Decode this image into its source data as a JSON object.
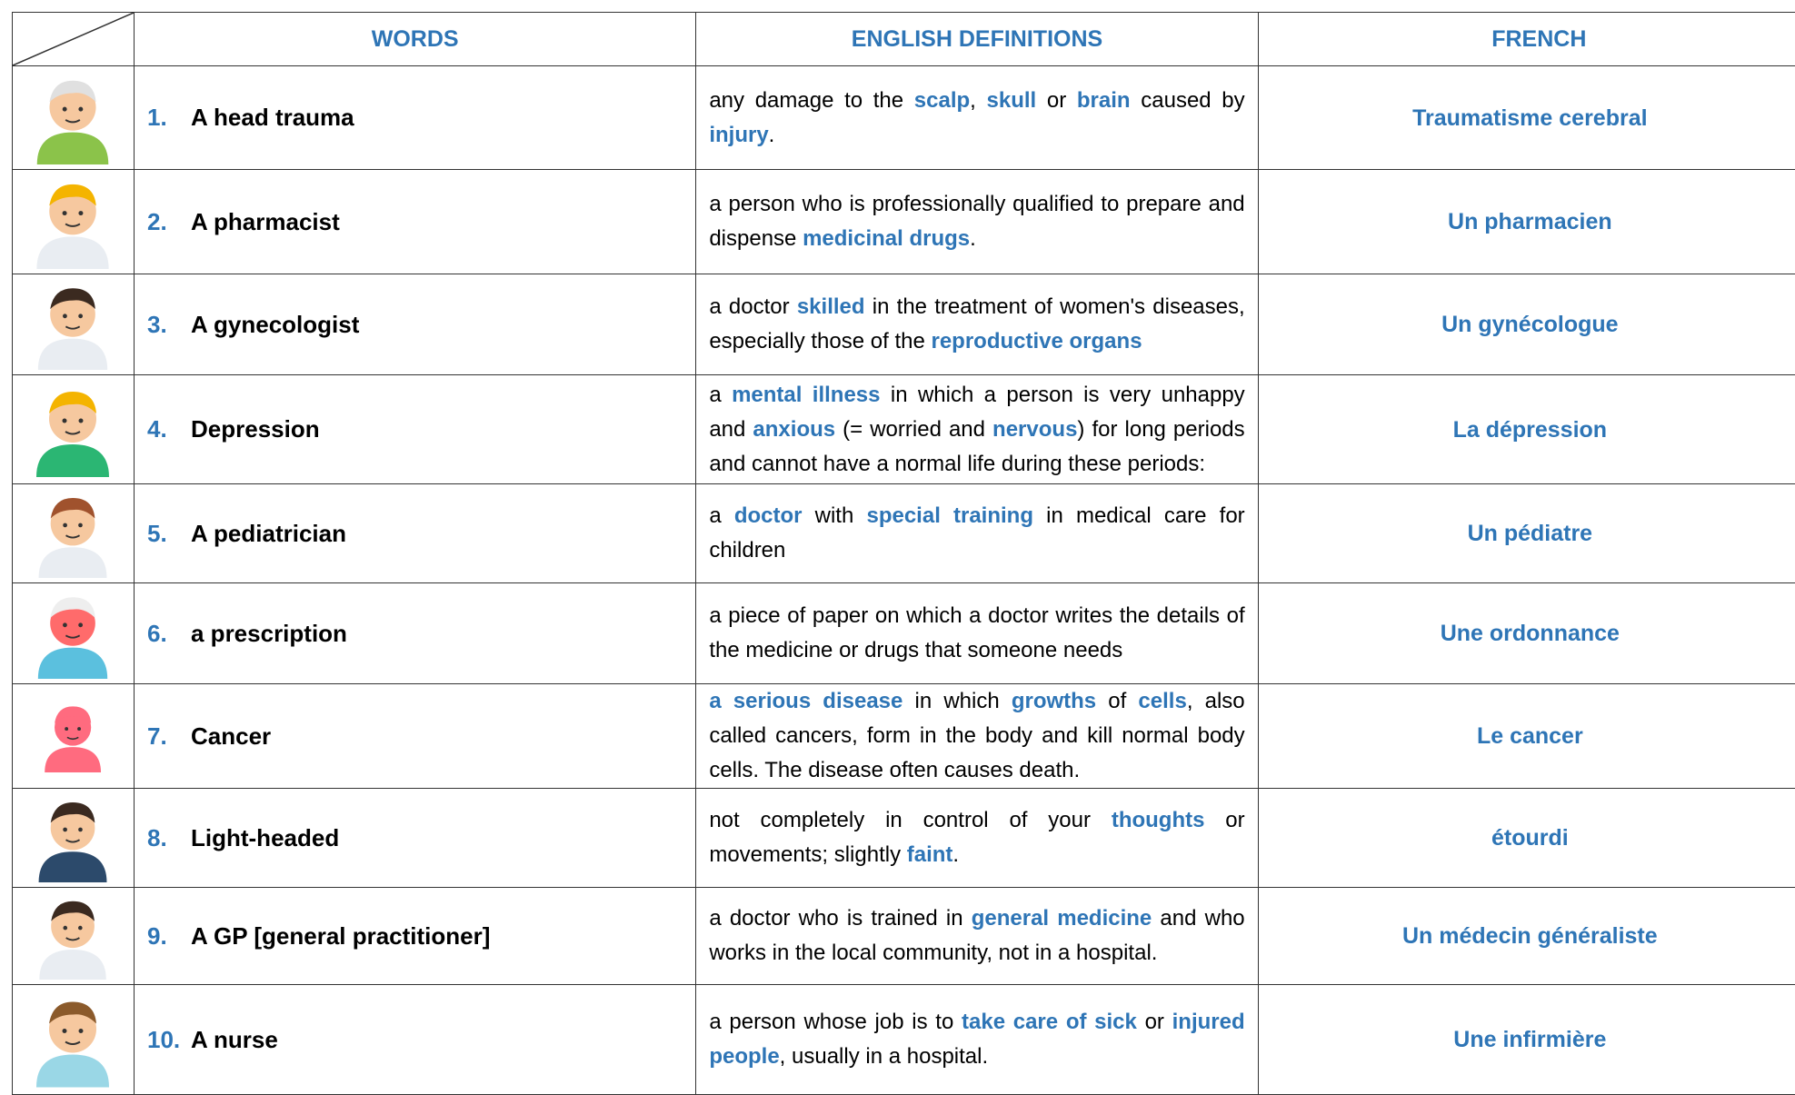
{
  "table": {
    "headers": [
      "WORDS",
      "ENGLISH DEFINITIONS",
      "FRENCH"
    ],
    "rows": [
      {
        "number": "1.",
        "word": "A head trauma",
        "definition": [
          {
            "text": "any damage to the "
          },
          {
            "text": "scalp",
            "highlight": true
          },
          {
            "text": ", "
          },
          {
            "text": "skull",
            "highlight": true
          },
          {
            "text": " or "
          },
          {
            "text": "brain",
            "highlight": true
          },
          {
            "text": " caused by "
          },
          {
            "text": "injury",
            "highlight": true
          },
          {
            "text": "."
          }
        ],
        "french": "Traumatisme cerebral"
      },
      {
        "number": "2.",
        "word": "A pharmacist",
        "definition": [
          {
            "text": "a person who is professionally qualified to prepare and dispense "
          },
          {
            "text": "medicinal drugs",
            "highlight": true
          },
          {
            "text": "."
          }
        ],
        "french": "Un pharmacien"
      },
      {
        "number": "3.",
        "word": "A gynecologist",
        "definition": [
          {
            "text": "a doctor "
          },
          {
            "text": "skilled",
            "highlight": true
          },
          {
            "text": " in the treatment of women's diseases, especially those of the "
          },
          {
            "text": "reproductive organs",
            "highlight": true
          }
        ],
        "french": "Un gynécologue"
      },
      {
        "number": "4.",
        "word": "Depression",
        "definition": [
          {
            "text": "a "
          },
          {
            "text": "mental illness",
            "highlight": true
          },
          {
            "text": " in which a person is very unhappy and "
          },
          {
            "text": "anxious",
            "highlight": true
          },
          {
            "text": " (= worried and "
          },
          {
            "text": "nervous",
            "highlight": true
          },
          {
            "text": ") for long periods and cannot have a normal life during these periods:"
          }
        ],
        "french": "La dépression"
      },
      {
        "number": "5.",
        "word": "A pediatrician",
        "definition": [
          {
            "text": "a "
          },
          {
            "text": "doctor",
            "highlight": true
          },
          {
            "text": " with "
          },
          {
            "text": "special training",
            "highlight": true
          },
          {
            "text": " in medical care for children"
          }
        ],
        "french": "Un pédiatre"
      },
      {
        "number": "6.",
        "word": "a prescription",
        "definition": [
          {
            "text": "a piece of paper on which a doctor writes the details of the medicine or drugs that someone needs"
          }
        ],
        "french": "Une ordonnance"
      },
      {
        "number": "7.",
        "word": "Cancer",
        "definition": [
          {
            "text": "a serious disease",
            "highlight": true
          },
          {
            "text": " in which "
          },
          {
            "text": "growths",
            "highlight": true
          },
          {
            "text": " of "
          },
          {
            "text": "cells",
            "highlight": true
          },
          {
            "text": ", also called cancers, form in the body and kill normal body cells. The disease often causes death."
          }
        ],
        "french": "Le cancer"
      },
      {
        "number": "8.",
        "word": "Light-headed",
        "definition": [
          {
            "text": "not completely in control of your "
          },
          {
            "text": "thoughts",
            "highlight": true
          },
          {
            "text": " or movements; slightly "
          },
          {
            "text": "faint",
            "highlight": true
          },
          {
            "text": "."
          }
        ],
        "french": "étourdi"
      },
      {
        "number": "9.",
        "word": "A GP [general practitioner]",
        "definition": [
          {
            "text": "a doctor who is trained in "
          },
          {
            "text": "general medicine",
            "highlight": true
          },
          {
            "text": " and who works in the local community, not in a hospital."
          }
        ],
        "french": "Un médecin généraliste"
      },
      {
        "number": "10.",
        "word": "A nurse",
        "definition": [
          {
            "text": "a person whose job is to "
          },
          {
            "text": "take care of sick",
            "highlight": true
          },
          {
            "text": " or "
          },
          {
            "text": "injured people",
            "highlight": true
          },
          {
            "text": ", usually in a hospital."
          }
        ],
        "french": "Une infirmière"
      }
    ]
  }
}
